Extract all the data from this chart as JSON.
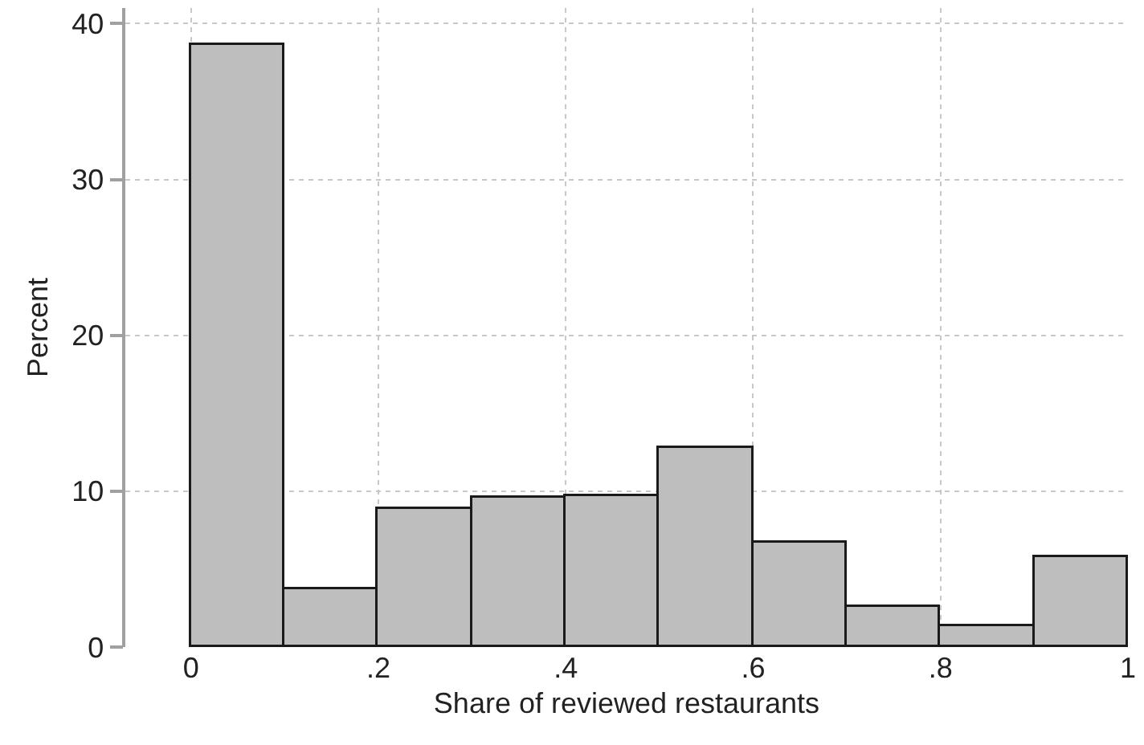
{
  "chart_data": {
    "type": "histogram",
    "xlabel": "Share of reviewed restaurants",
    "ylabel": "Percent",
    "bins": [
      0,
      0.1,
      0.2,
      0.3,
      0.4,
      0.5,
      0.6,
      0.7,
      0.8,
      0.9,
      1
    ],
    "values": [
      38.6,
      3.7,
      8.9,
      9.6,
      9.7,
      12.8,
      6.7,
      2.6,
      1.3,
      5.8
    ],
    "color": "#bebebe",
    "xlim": [
      -0.07,
      1.0
    ],
    "ylim": [
      0,
      41
    ],
    "xticks": [
      0,
      {
        "value": 0.2,
        "label": ".2"
      },
      {
        "value": 0.4,
        "label": ".4"
      },
      {
        "value": 0.6,
        "label": ".6"
      },
      {
        "value": 0.8,
        "label": ".8"
      },
      1
    ],
    "yticks": [
      0,
      10,
      20,
      30,
      40
    ],
    "grid": true
  }
}
